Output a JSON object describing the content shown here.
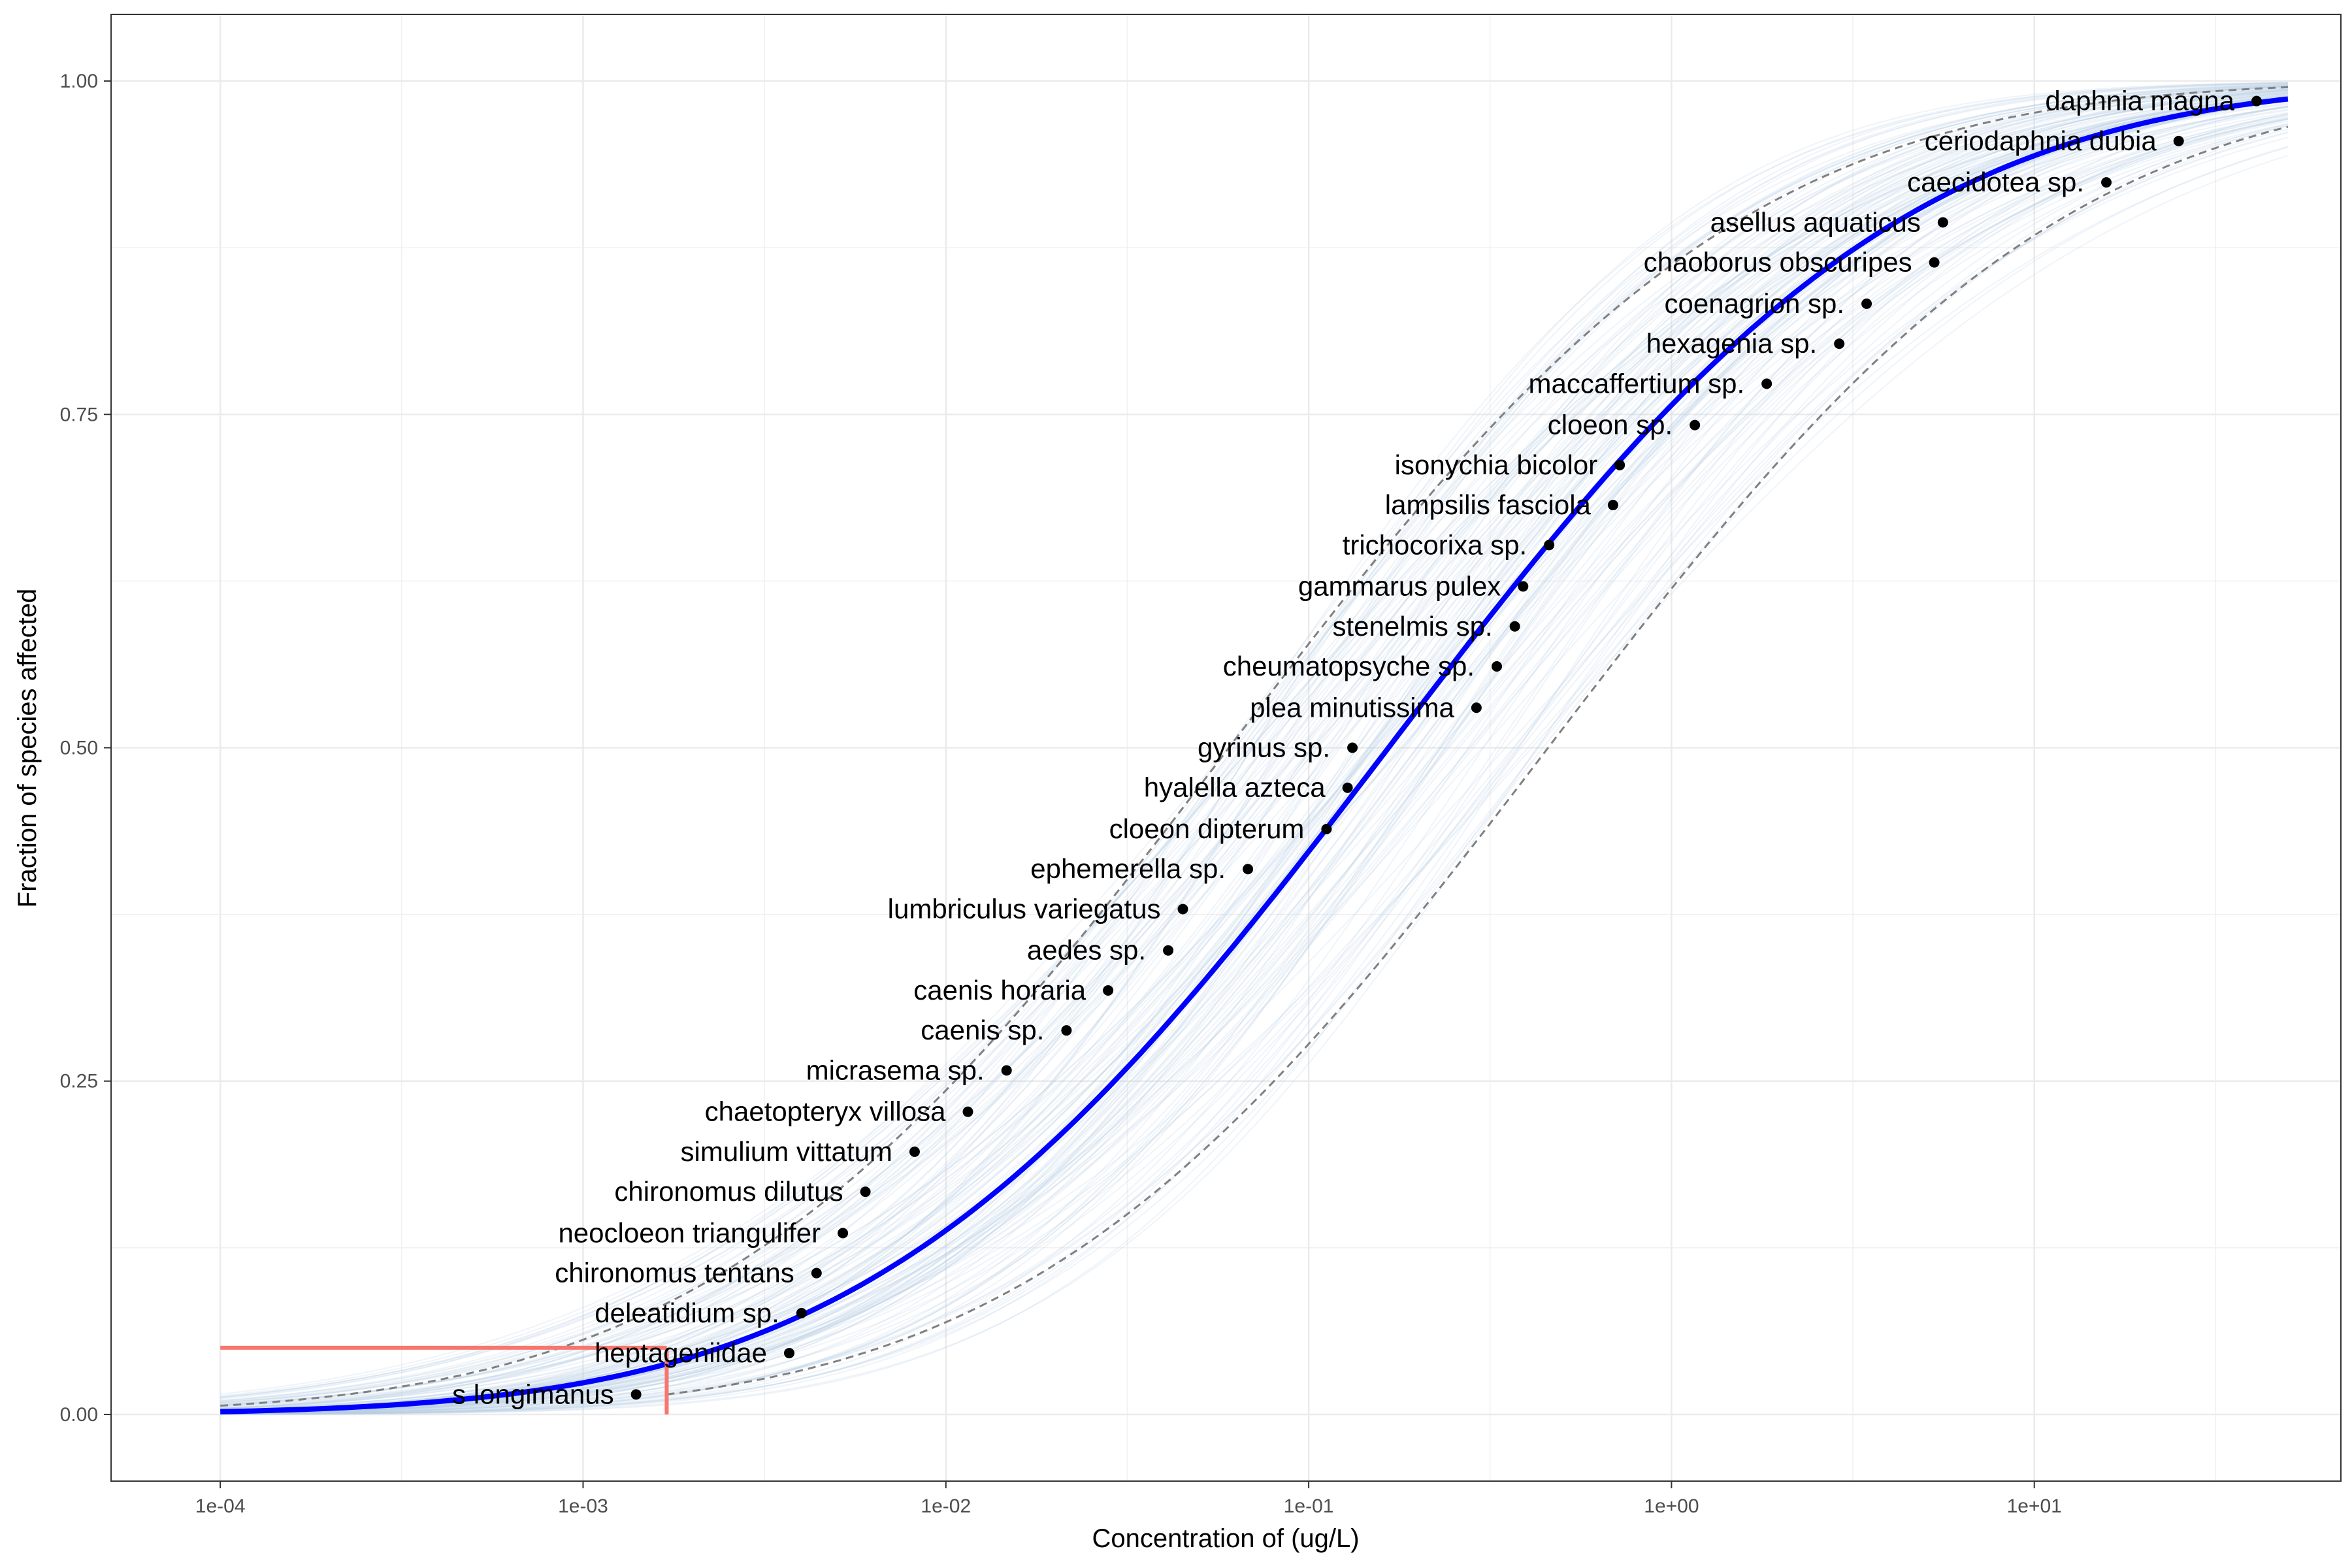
{
  "chart_data": {
    "type": "scatter",
    "title": "",
    "xlabel": "Concentration of  (ug/L)",
    "ylabel": "Fraction of species affected",
    "x_scale": "log10",
    "xlim": [
      5e-05,
      70
    ],
    "ylim": [
      -0.05,
      1.05
    ],
    "x_ticks": [
      0.0001,
      0.001,
      0.01,
      0.1,
      1,
      10
    ],
    "x_tick_labels": [
      "1e-04",
      "1e-03",
      "1e-02",
      "1e-01",
      "1e+00",
      "1e+01"
    ],
    "y_ticks": [
      0,
      0.25,
      0.5,
      0.75,
      1
    ],
    "y_tick_labels": [
      "0.00",
      "0.25",
      "0.50",
      "0.75",
      "1.00"
    ],
    "grid": true,
    "legend": "none",
    "fitted_curve": {
      "distribution": "log-normal",
      "log10_median": -0.78,
      "log10_sd": 1.12,
      "color": "#0000ff",
      "x_range": [
        0.0001,
        50
      ]
    },
    "confidence_band": {
      "lower_log10_median": -0.34,
      "upper_log10_median": -1.22,
      "log10_sd": 1.12,
      "color": "#808080",
      "style": "dashed"
    },
    "bootstrap_curves": {
      "count": 120,
      "color": "#b8cce4"
    },
    "hazard_concentration": {
      "fraction": 0.05,
      "x": 0.0017,
      "color": "#f8766d"
    },
    "points": [
      {
        "label": "s longimanus",
        "x": 0.0014,
        "y": 0.015
      },
      {
        "label": "heptageniidae",
        "x": 0.0037,
        "y": 0.046
      },
      {
        "label": "deleatidium sp.",
        "x": 0.004,
        "y": 0.076
      },
      {
        "label": "chironomus tentans",
        "x": 0.0044,
        "y": 0.106
      },
      {
        "label": "neocloeon triangulifer",
        "x": 0.0052,
        "y": 0.136
      },
      {
        "label": "chironomus dilutus",
        "x": 0.006,
        "y": 0.167
      },
      {
        "label": "simulium vittatum",
        "x": 0.0082,
        "y": 0.197
      },
      {
        "label": "chaetopteryx villosa",
        "x": 0.0115,
        "y": 0.227
      },
      {
        "label": "micrasema sp.",
        "x": 0.0147,
        "y": 0.258
      },
      {
        "label": "caenis sp.",
        "x": 0.0215,
        "y": 0.288
      },
      {
        "label": "caenis horaria",
        "x": 0.028,
        "y": 0.318
      },
      {
        "label": "aedes sp.",
        "x": 0.041,
        "y": 0.348
      },
      {
        "label": "lumbriculus variegatus",
        "x": 0.045,
        "y": 0.379
      },
      {
        "label": "ephemerella sp.",
        "x": 0.068,
        "y": 0.409
      },
      {
        "label": "cloeon dipterum",
        "x": 0.112,
        "y": 0.439
      },
      {
        "label": "hyalella azteca",
        "x": 0.128,
        "y": 0.47
      },
      {
        "label": "gyrinus sp.",
        "x": 0.132,
        "y": 0.5
      },
      {
        "label": "plea minutissima",
        "x": 0.29,
        "y": 0.53
      },
      {
        "label": "cheumatopsyche sp.",
        "x": 0.33,
        "y": 0.561
      },
      {
        "label": "stenelmis sp.",
        "x": 0.37,
        "y": 0.591
      },
      {
        "label": "gammarus pulex",
        "x": 0.39,
        "y": 0.621
      },
      {
        "label": "trichocorixa sp.",
        "x": 0.46,
        "y": 0.652
      },
      {
        "label": "lampsilis fasciola",
        "x": 0.69,
        "y": 0.682
      },
      {
        "label": "isonychia bicolor",
        "x": 0.72,
        "y": 0.712
      },
      {
        "label": "cloeon sp.",
        "x": 1.16,
        "y": 0.742
      },
      {
        "label": "maccaffertium sp.",
        "x": 1.83,
        "y": 0.773
      },
      {
        "label": "hexagenia sp.",
        "x": 2.9,
        "y": 0.803
      },
      {
        "label": "coenagrion sp.",
        "x": 3.45,
        "y": 0.833
      },
      {
        "label": "chaoborus obscuripes",
        "x": 5.3,
        "y": 0.864
      },
      {
        "label": "asellus aquaticus",
        "x": 5.6,
        "y": 0.894
      },
      {
        "label": "caecidotea sp.",
        "x": 15.8,
        "y": 0.924
      },
      {
        "label": "ceriodaphnia dubia",
        "x": 25.0,
        "y": 0.955
      },
      {
        "label": "daphnia magna",
        "x": 41.0,
        "y": 0.985
      }
    ]
  }
}
